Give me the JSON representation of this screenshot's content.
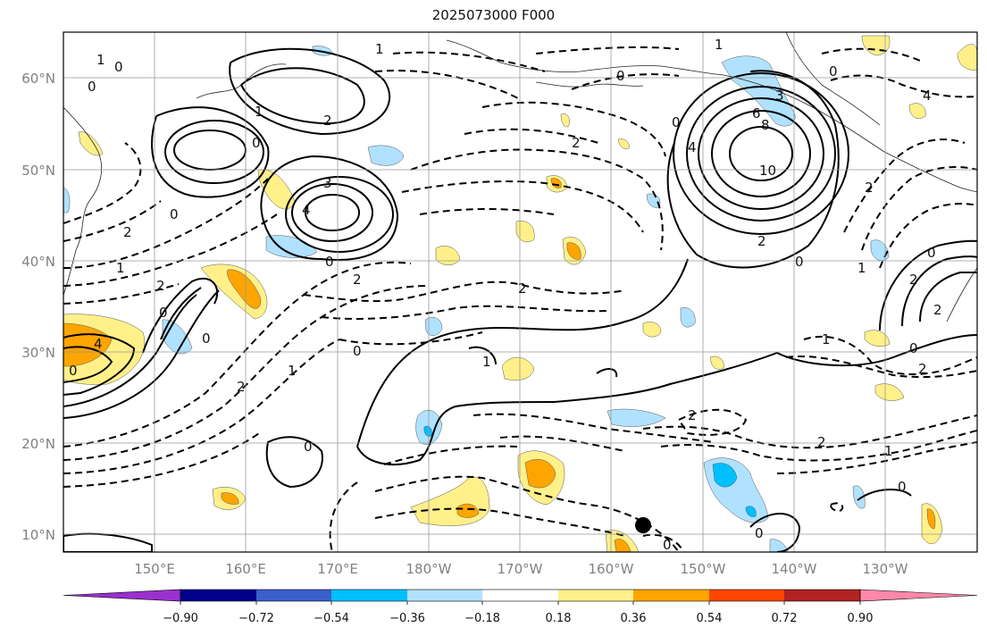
{
  "title": "2025073000 F000",
  "lat_labels": [
    "60°N",
    "50°N",
    "40°N",
    "30°N",
    "20°N",
    "10°N"
  ],
  "lon_labels": [
    "150°E",
    "160°E",
    "170°E",
    "180°W",
    "170°W",
    "160°W",
    "150°W",
    "140°W",
    "130°W"
  ],
  "colorbar": {
    "colors": [
      "#9b30d0",
      "#00008b",
      "#3a5fcd",
      "#00bfff",
      "#b0e2ff",
      "#ffffff",
      "#fff08a",
      "#ffa500",
      "#ff4500",
      "#b22222",
      "#ff88aa"
    ],
    "tick_labels": [
      "−0.90",
      "−0.72",
      "−0.54",
      "−0.36",
      "−0.18",
      "0.18",
      "0.36",
      "0.54",
      "0.72",
      "0.90"
    ]
  },
  "contour_labels": [
    "1",
    "0",
    "0",
    "1",
    "2",
    "0",
    "3",
    "4",
    "0",
    "2",
    "1",
    "0",
    "2",
    "4",
    "0",
    "1",
    "2",
    "0",
    "1",
    "2",
    "0",
    "1",
    "2",
    "3",
    "4",
    "6",
    "8",
    "10",
    "2",
    "1",
    "0",
    "1",
    "2",
    "0",
    "1",
    "2",
    "0",
    "2",
    "0",
    "1",
    "2",
    "0",
    "2",
    "0",
    "0",
    "4",
    "2",
    "0",
    "0",
    "2",
    "0",
    "0"
  ],
  "marker": "filled-circle"
}
